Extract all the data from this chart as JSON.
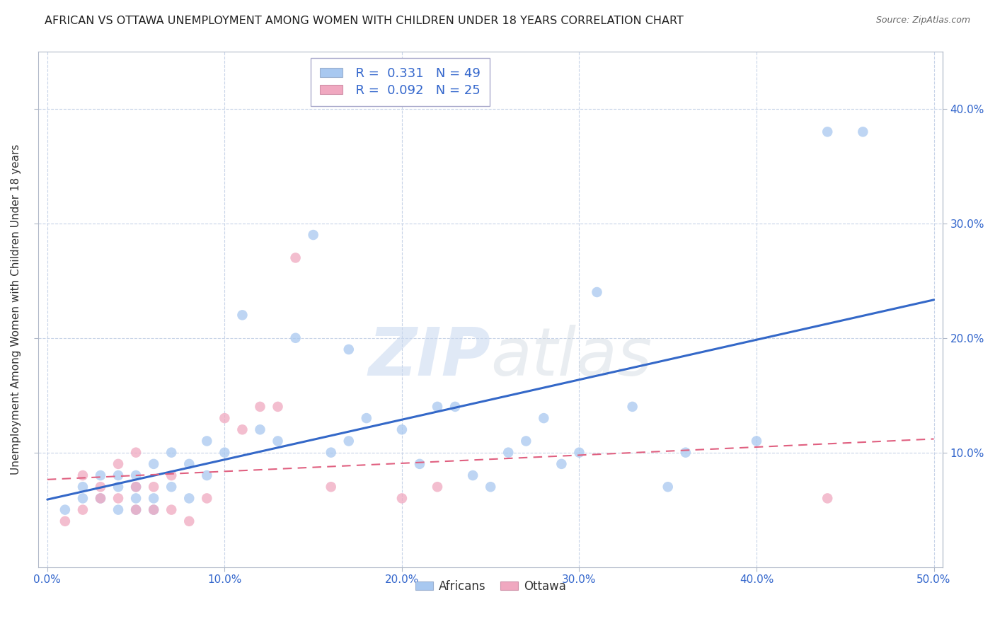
{
  "title": "AFRICAN VS OTTAWA UNEMPLOYMENT AMONG WOMEN WITH CHILDREN UNDER 18 YEARS CORRELATION CHART",
  "source": "Source: ZipAtlas.com",
  "ylabel": "Unemployment Among Women with Children Under 18 years",
  "x_tick_vals": [
    0.0,
    0.1,
    0.2,
    0.3,
    0.4,
    0.5
  ],
  "x_tick_labels": [
    "0.0%",
    "10.0%",
    "20.0%",
    "30.0%",
    "40.0%",
    "50.0%"
  ],
  "y_tick_vals": [
    0.1,
    0.2,
    0.3,
    0.4
  ],
  "y_tick_labels_right": [
    "10.0%",
    "20.0%",
    "30.0%",
    "40.0%"
  ],
  "xlim": [
    -0.005,
    0.505
  ],
  "ylim": [
    0.0,
    0.45
  ],
  "africans_R": 0.331,
  "africans_N": 49,
  "ottawa_R": 0.092,
  "ottawa_N": 25,
  "africans_color": "#a8c8f0",
  "ottawa_color": "#f0a8c0",
  "trendline_africans_color": "#3468c8",
  "trendline_ottawa_color": "#e06080",
  "africans_x": [
    0.01,
    0.02,
    0.02,
    0.03,
    0.03,
    0.04,
    0.04,
    0.04,
    0.05,
    0.05,
    0.05,
    0.05,
    0.06,
    0.06,
    0.06,
    0.07,
    0.07,
    0.08,
    0.08,
    0.09,
    0.09,
    0.1,
    0.11,
    0.12,
    0.13,
    0.14,
    0.15,
    0.16,
    0.17,
    0.17,
    0.18,
    0.2,
    0.21,
    0.22,
    0.23,
    0.24,
    0.25,
    0.26,
    0.27,
    0.28,
    0.29,
    0.3,
    0.31,
    0.33,
    0.35,
    0.36,
    0.4,
    0.44,
    0.46
  ],
  "africans_y": [
    0.05,
    0.06,
    0.07,
    0.06,
    0.08,
    0.05,
    0.07,
    0.08,
    0.05,
    0.06,
    0.07,
    0.08,
    0.05,
    0.06,
    0.09,
    0.07,
    0.1,
    0.06,
    0.09,
    0.08,
    0.11,
    0.1,
    0.22,
    0.12,
    0.11,
    0.2,
    0.29,
    0.1,
    0.11,
    0.19,
    0.13,
    0.12,
    0.09,
    0.14,
    0.14,
    0.08,
    0.07,
    0.1,
    0.11,
    0.13,
    0.09,
    0.1,
    0.24,
    0.14,
    0.07,
    0.1,
    0.11,
    0.38,
    0.38
  ],
  "ottawa_x": [
    0.01,
    0.02,
    0.02,
    0.03,
    0.03,
    0.04,
    0.04,
    0.05,
    0.05,
    0.05,
    0.06,
    0.06,
    0.07,
    0.07,
    0.08,
    0.09,
    0.1,
    0.11,
    0.12,
    0.13,
    0.14,
    0.16,
    0.2,
    0.22,
    0.44
  ],
  "ottawa_y": [
    0.04,
    0.05,
    0.08,
    0.06,
    0.07,
    0.06,
    0.09,
    0.05,
    0.07,
    0.1,
    0.05,
    0.07,
    0.05,
    0.08,
    0.04,
    0.06,
    0.13,
    0.12,
    0.14,
    0.14,
    0.27,
    0.07,
    0.06,
    0.07,
    0.06
  ],
  "watermark_zip": "ZIP",
  "watermark_atlas": "atlas",
  "background_color": "#ffffff",
  "grid_color": "#c8d4e8",
  "tick_color": "#3366cc",
  "title_color": "#222222",
  "source_color": "#666666",
  "ylabel_color": "#333333",
  "legend_box_color": "#aaaacc",
  "legend_text_color": "#3366cc",
  "bottom_legend_color": "#333333",
  "scatter_size": 110,
  "scatter_alpha": 0.75
}
